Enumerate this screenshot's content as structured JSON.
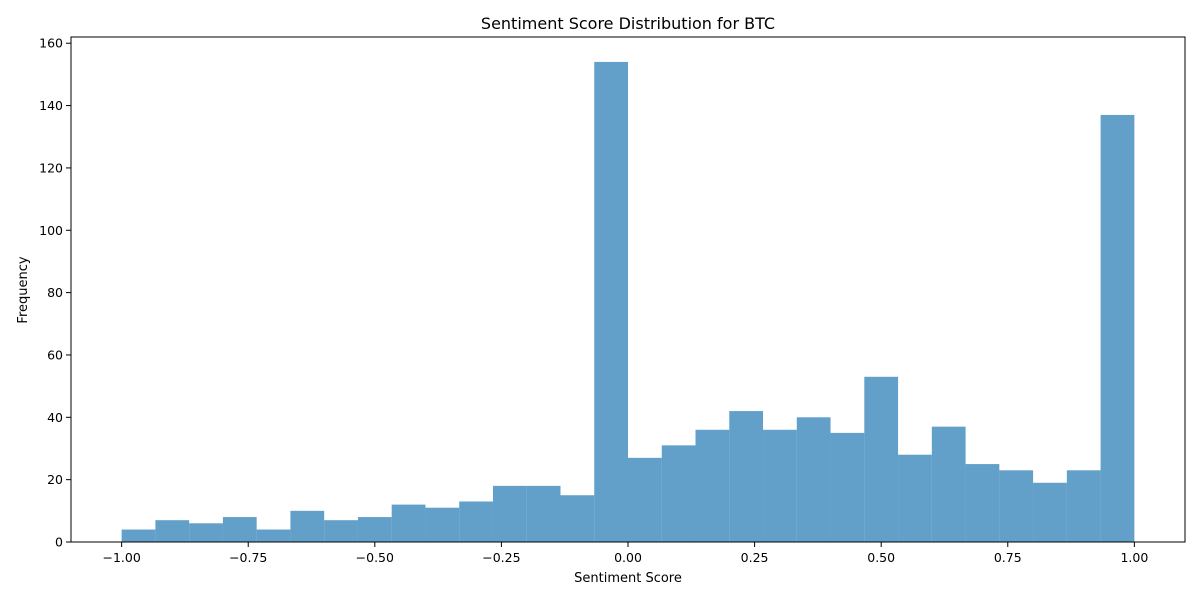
{
  "chart_data": {
    "type": "bar",
    "title": "Sentiment Score Distribution for BTC",
    "xlabel": "Sentiment Score",
    "ylabel": "Frequency",
    "xlim": [
      -1.1,
      1.1
    ],
    "ylim": [
      0,
      162
    ],
    "x_ticks": [
      -1.0,
      -0.75,
      -0.5,
      -0.25,
      0.0,
      0.25,
      0.5,
      0.75,
      1.0
    ],
    "x_tick_labels": [
      "−1.00",
      "−0.75",
      "−0.50",
      "−0.25",
      "0.00",
      "0.25",
      "0.50",
      "0.75",
      "1.00"
    ],
    "y_ticks": [
      0,
      20,
      40,
      60,
      80,
      100,
      120,
      140,
      160
    ],
    "y_tick_labels": [
      "0",
      "20",
      "40",
      "60",
      "80",
      "100",
      "120",
      "140",
      "160"
    ],
    "bin_start": -1.0,
    "bin_end": 1.0,
    "bins": 30,
    "values": [
      4,
      7,
      6,
      8,
      4,
      10,
      7,
      8,
      12,
      11,
      13,
      18,
      18,
      15,
      154,
      27,
      31,
      36,
      42,
      36,
      40,
      35,
      53,
      28,
      37,
      25,
      23,
      19,
      23,
      137
    ],
    "bar_color": "#1f77b4",
    "bar_alpha": 0.7,
    "grid": false,
    "legend": "none"
  }
}
